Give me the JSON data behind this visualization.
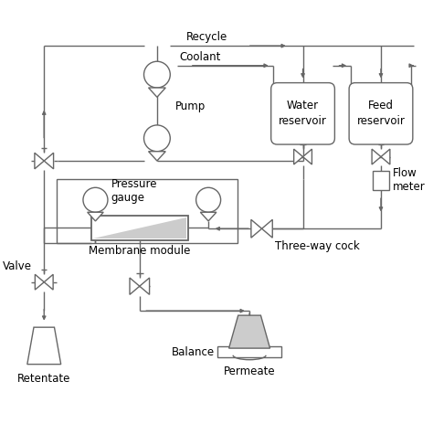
{
  "bg_color": "#ffffff",
  "line_color": "#666666",
  "light_gray": "#cccccc",
  "labels": {
    "recycle": "Recycle",
    "coolant": "Coolant",
    "pump": "Pump",
    "water_reservoir": "Water\nreservoir",
    "feed_reservoir": "Feed\nreservoir",
    "pressure_gauge": "Pressure\ngauge",
    "membrane_module": "Membrane module",
    "three_way_cock": "Three-way cock",
    "flow_meter": "Flow\nmeter",
    "valve": "Valve",
    "retentate": "Retentate",
    "balance": "Balance",
    "permeate": "Permeate"
  },
  "font_size": 8.5
}
